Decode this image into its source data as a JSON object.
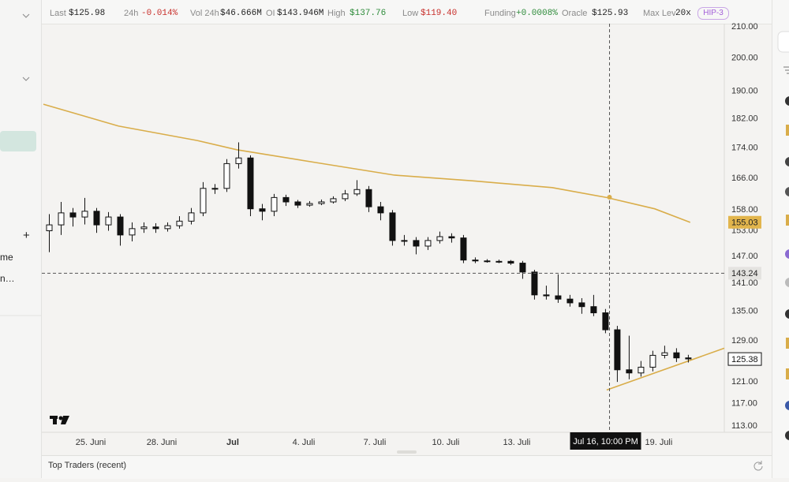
{
  "stats": [
    {
      "label": "Last",
      "value": "$125.98"
    },
    {
      "label": "24h",
      "value": "-0.014%"
    },
    {
      "label": "Vol 24h",
      "value": "$46.666M"
    },
    {
      "label": "OI",
      "value": "$143.946M"
    },
    {
      "label": "High",
      "value": "$137.76"
    },
    {
      "label": "Low",
      "value": "$119.40"
    },
    {
      "label": "Funding",
      "value": "+0.0008%"
    },
    {
      "label": "Oracle",
      "value": "$125.93"
    },
    {
      "label": "Max Lev",
      "value": "20x"
    }
  ],
  "badge": "HIP-3",
  "sidebar": {
    "add": "+",
    "items": [
      "me",
      "n…"
    ]
  },
  "panel": {
    "title": "Top Traders (recent)"
  },
  "chart_data": {
    "type": "candlestick",
    "log_scale": true,
    "up_color": "#ffffff",
    "down_color": "#111111",
    "x": [
      23.25,
      23.75,
      24.25,
      24.75,
      25.25,
      25.75,
      26.25,
      26.75,
      27.25,
      27.75,
      28.25,
      28.75,
      29.25,
      29.75,
      30.25,
      30.75,
      31.25,
      31.75,
      32.25,
      32.75,
      33.25,
      33.75,
      34.25,
      34.75,
      35.25,
      35.75,
      36.25,
      36.75,
      37.25,
      37.75,
      38.25,
      38.75,
      39.25,
      39.75,
      40.25,
      40.75,
      41.25,
      41.75,
      42.25,
      42.75,
      43.25,
      43.75,
      44.25,
      44.75,
      45.25,
      45.75,
      46.25,
      46.75,
      47.25,
      47.75,
      48.25,
      48.75,
      49.25,
      49.75,
      50.25
    ],
    "open": [
      153,
      154.4,
      157.3,
      156.3,
      157.7,
      154.4,
      156.3,
      152,
      153.5,
      153.9,
      153.5,
      154.2,
      155.3,
      157.3,
      163.4,
      163.4,
      169.8,
      171.3,
      158.3,
      157.7,
      161.1,
      160,
      159.2,
      159.6,
      160,
      160.8,
      162,
      163.1,
      158.8,
      157.3,
      150.7,
      150.7,
      149.4,
      150.7,
      151.6,
      151.3,
      146.2,
      146,
      145.9,
      145.9,
      145.5,
      143.5,
      138.5,
      138.3,
      137.6,
      136.8,
      136,
      134.7,
      131.2,
      123.3,
      122.7,
      123.8,
      126.1,
      126.6,
      125.6
    ],
    "high": [
      157,
      160,
      158.5,
      161,
      158.5,
      157.5,
      157,
      155,
      155,
      154.8,
      155,
      156.5,
      158.5,
      165,
      164.5,
      171,
      175.5,
      172,
      159.5,
      162,
      161.8,
      160.5,
      160.2,
      160.6,
      161.4,
      163,
      165.5,
      164,
      160,
      158,
      152,
      151.5,
      151.5,
      152.8,
      152.4,
      152,
      146.8,
      146.4,
      146.3,
      146.2,
      146,
      144,
      140.5,
      143,
      138.5,
      137.8,
      138.5,
      135.5,
      132,
      130,
      125,
      127,
      128,
      127.5,
      126.2
    ],
    "low": [
      148,
      152,
      154,
      154.5,
      152.5,
      153,
      149.5,
      150.5,
      152.5,
      152.5,
      152.8,
      153.5,
      154.5,
      156.5,
      162,
      162.5,
      168.5,
      156.5,
      155.5,
      156.5,
      159,
      158.5,
      158.8,
      159.2,
      159.6,
      160.2,
      161.5,
      157.5,
      155.5,
      149.5,
      149.5,
      147.5,
      148.5,
      150,
      150.2,
      145.5,
      145.5,
      145.6,
      145.5,
      145.1,
      142,
      137.5,
      137.5,
      136.8,
      136,
      134.5,
      134,
      130.5,
      121,
      121.5,
      122,
      123,
      125.5,
      124.8,
      124.7
    ],
    "close": [
      154.4,
      157.3,
      156.3,
      157.7,
      154.4,
      156.3,
      152,
      153.5,
      153.9,
      153.5,
      154.2,
      155.3,
      157.3,
      163.4,
      163.4,
      169.8,
      171.3,
      158.3,
      157.7,
      161.1,
      160,
      159.2,
      159.6,
      160,
      160.8,
      162,
      163.1,
      158.8,
      157.3,
      150.7,
      150.7,
      149.4,
      150.7,
      151.6,
      151.3,
      146.2,
      146,
      145.9,
      145.9,
      145.5,
      143.5,
      138.5,
      138.3,
      137.6,
      136.8,
      136,
      134.7,
      131.2,
      123.3,
      122.7,
      123.8,
      126.1,
      126.6,
      125.6,
      125.4
    ],
    "lines": [
      {
        "color": "#d9ad4a",
        "x": [
          23,
          26.17,
          29.5,
          31.17,
          34.5,
          37.83,
          41.17,
          44.5,
          46.8,
          48.83,
          50.33
        ],
        "values": [
          186.2,
          180,
          176,
          173.5,
          170.1,
          166.8,
          165.3,
          163.6,
          161.1,
          158.3,
          155
        ]
      },
      {
        "color": "#d9ad4a",
        "x": [
          46.8,
          51.77
        ],
        "values": [
          119.5,
          127.5
        ]
      }
    ],
    "xlim": [
      23,
      51.77
    ],
    "xticks": [
      {
        "value": 25,
        "label": "25. Juni"
      },
      {
        "value": 28,
        "label": "28. Juni"
      },
      {
        "value": 31,
        "label": "Jul"
      },
      {
        "value": 34,
        "label": "4. Juli"
      },
      {
        "value": 37,
        "label": "7. Juli"
      },
      {
        "value": 40,
        "label": "10. Juli"
      },
      {
        "value": 43,
        "label": "13. Juli"
      },
      {
        "value": 49,
        "label": "19. Juli"
      }
    ],
    "ylim": [
      111.9,
      211
    ],
    "yticks": [
      {
        "value": 210,
        "label": "210.00"
      },
      {
        "value": 200,
        "label": "200.00"
      },
      {
        "value": 190,
        "label": "190.00"
      },
      {
        "value": 182,
        "label": "182.00"
      },
      {
        "value": 174,
        "label": "174.00"
      },
      {
        "value": 166,
        "label": "166.00"
      },
      {
        "value": 158,
        "label": "158.00"
      },
      {
        "value": 153,
        "label": "153.00"
      },
      {
        "value": 147,
        "label": "147.00"
      },
      {
        "value": 141,
        "label": "141.00"
      },
      {
        "value": 135,
        "label": "135.00"
      },
      {
        "value": 129,
        "label": "129.00"
      },
      {
        "value": 121,
        "label": "121.00"
      },
      {
        "value": 117,
        "label": "117.00"
      },
      {
        "value": 113,
        "label": "113.00"
      }
    ],
    "crosshair": {
      "x": 46.92,
      "x_label": "Jul 16, 10:00 PM",
      "y": 143.24
    },
    "ma_label": 155.03,
    "last_price": 125.38
  }
}
